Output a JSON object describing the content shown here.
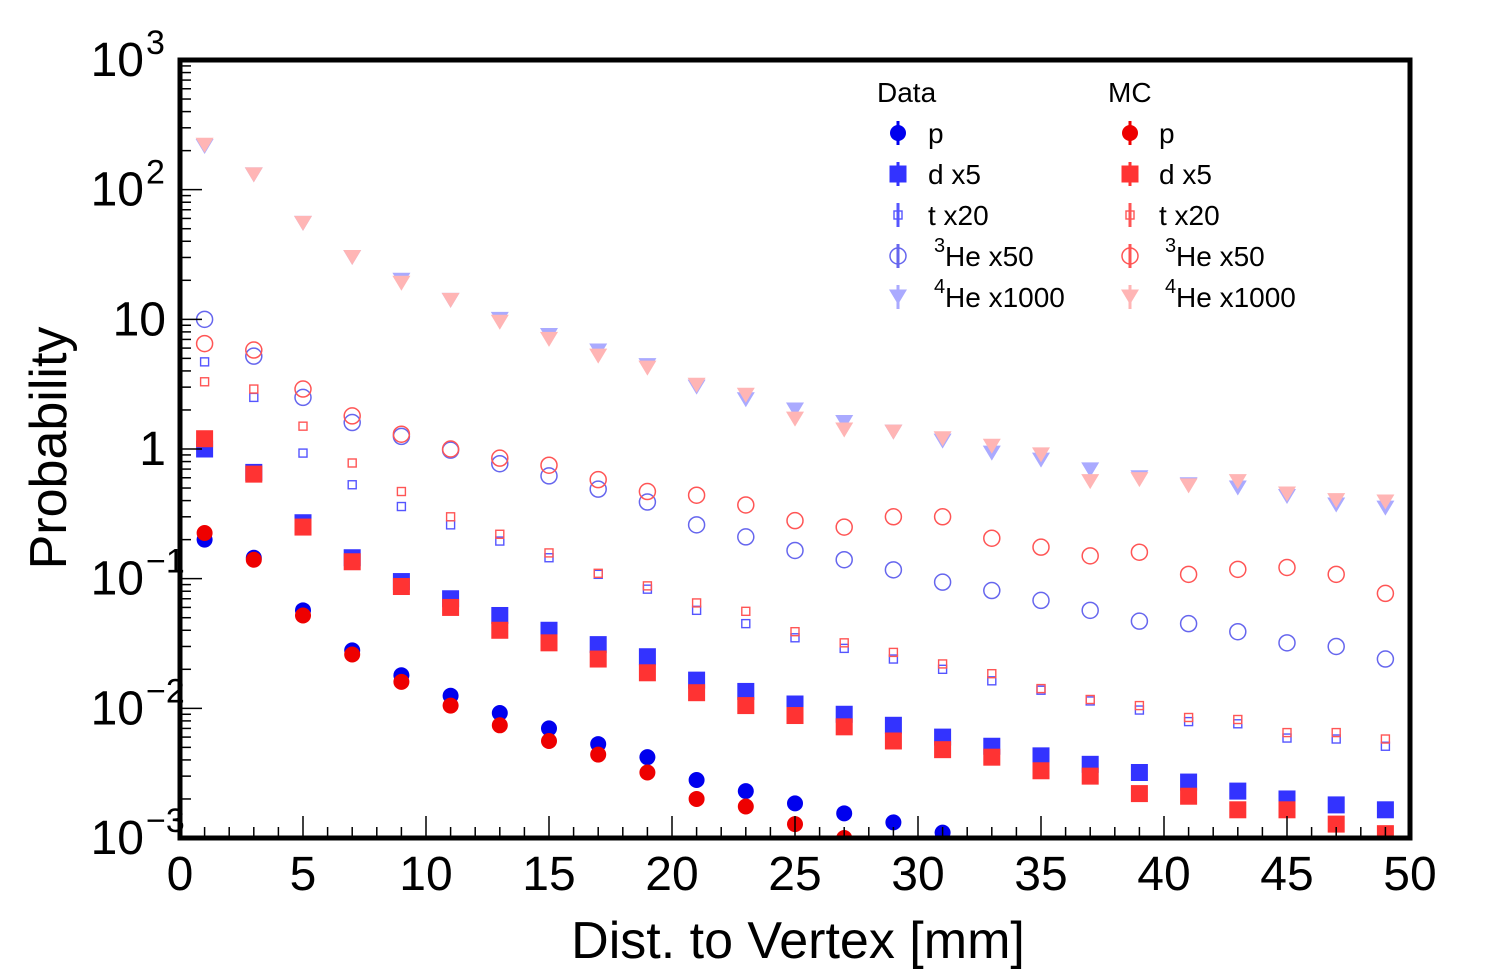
{
  "chart_data": {
    "type": "scatter",
    "title": "",
    "xlabel": "Dist. to Vertex [mm]",
    "ylabel": "Probability",
    "xlim": [
      0,
      50
    ],
    "ylim": [
      0.001,
      1000
    ],
    "yscale": "log",
    "grid": false,
    "legend_position": "top-right",
    "x_ticks": [
      0,
      5,
      10,
      15,
      20,
      25,
      30,
      35,
      40,
      45,
      50
    ],
    "x_tick_labels": [
      "0",
      "5",
      "10",
      "15",
      "20",
      "25",
      "30",
      "35",
      "40",
      "45",
      "50"
    ],
    "y_ticks": [
      {
        "value": 0.001,
        "base": "10",
        "exp": "−3"
      },
      {
        "value": 0.01,
        "base": "10",
        "exp": "−2"
      },
      {
        "value": 0.1,
        "base": "10",
        "exp": "−1"
      },
      {
        "value": 1,
        "base": "1",
        "exp": ""
      },
      {
        "value": 10,
        "base": "10",
        "exp": ""
      },
      {
        "value": 100,
        "base": "10",
        "exp": "2"
      },
      {
        "value": 1000,
        "base": "10",
        "exp": "3"
      }
    ],
    "legend": {
      "data_header": "Data",
      "mc_header": "MC",
      "entries": [
        {
          "pre": "",
          "label": "p"
        },
        {
          "pre": "",
          "label": "d x5"
        },
        {
          "pre": "",
          "label": "t x20"
        },
        {
          "pre": "3",
          "label": "He x50"
        },
        {
          "pre": "4",
          "label": "He x1000"
        }
      ]
    },
    "x": [
      1,
      3,
      5,
      7,
      9,
      11,
      13,
      15,
      17,
      19,
      21,
      23,
      25,
      27,
      29,
      31,
      33,
      35,
      37,
      39,
      41,
      43,
      45,
      47,
      49
    ],
    "series": [
      {
        "group": "Data",
        "particle": "p",
        "marker": "circle-filled",
        "color": "#0000ee",
        "opacity": 1.0,
        "values": [
          0.2,
          0.145,
          0.057,
          0.028,
          0.018,
          0.0125,
          0.0092,
          0.007,
          0.0053,
          0.0042,
          0.0028,
          0.0023,
          0.00185,
          0.00155,
          0.00132,
          0.0011,
          null,
          null,
          null,
          null,
          null,
          null,
          null,
          null,
          null
        ]
      },
      {
        "group": "MC",
        "particle": "p",
        "marker": "circle-filled",
        "color": "#ee0000",
        "opacity": 1.0,
        "values": [
          0.225,
          0.14,
          0.052,
          0.026,
          0.016,
          0.0105,
          0.0074,
          0.0056,
          0.0044,
          0.0032,
          0.002,
          0.00175,
          0.00128,
          0.001,
          null,
          null,
          null,
          null,
          null,
          null,
          null,
          null,
          null,
          null,
          null
        ]
      },
      {
        "group": "Data",
        "particle": "d",
        "marker": "square-filled",
        "color": "#3333ff",
        "opacity": 1.0,
        "values": [
          1.0,
          0.66,
          0.27,
          0.145,
          0.095,
          0.07,
          0.052,
          0.04,
          0.031,
          0.025,
          0.0165,
          0.0135,
          0.0108,
          0.009,
          0.0074,
          0.006,
          0.0051,
          0.0043,
          0.0037,
          0.0032,
          0.0027,
          0.0023,
          0.002,
          0.0018,
          0.00165
        ]
      },
      {
        "group": "MC",
        "particle": "d",
        "marker": "square-filled",
        "color": "#ff3333",
        "opacity": 1.0,
        "values": [
          1.2,
          0.64,
          0.25,
          0.135,
          0.087,
          0.06,
          0.04,
          0.032,
          0.024,
          0.0188,
          0.0132,
          0.0105,
          0.0088,
          0.0072,
          0.0056,
          0.0048,
          0.0042,
          0.0033,
          0.003,
          0.0022,
          0.0021,
          0.00165,
          0.00165,
          0.00128,
          0.00108
        ]
      },
      {
        "group": "Data",
        "particle": "t",
        "marker": "square-open",
        "color": "#5555ff",
        "opacity": 1.0,
        "values": [
          4.7,
          2.5,
          0.93,
          0.53,
          0.36,
          0.26,
          0.195,
          0.145,
          0.108,
          0.083,
          0.057,
          0.045,
          0.035,
          0.029,
          0.024,
          0.02,
          0.0163,
          0.0138,
          0.0114,
          0.0097,
          0.0079,
          0.0076,
          0.0059,
          0.0058,
          0.0051
        ]
      },
      {
        "group": "MC",
        "particle": "t",
        "marker": "square-open",
        "color": "#ff5555",
        "opacity": 1.0,
        "values": [
          3.3,
          2.9,
          1.5,
          0.78,
          0.47,
          0.3,
          0.22,
          0.158,
          0.11,
          0.088,
          0.065,
          0.056,
          0.039,
          0.032,
          0.027,
          0.022,
          0.0185,
          0.0142,
          0.0117,
          0.0105,
          0.0085,
          0.0082,
          0.0065,
          0.0065,
          0.0058
        ]
      },
      {
        "group": "Data",
        "particle": "He3",
        "marker": "circle-open",
        "color": "#6666ee",
        "opacity": 1.0,
        "values": [
          10,
          5.2,
          2.5,
          1.6,
          1.25,
          0.98,
          0.77,
          0.62,
          0.49,
          0.39,
          0.26,
          0.21,
          0.165,
          0.14,
          0.117,
          0.094,
          0.081,
          0.068,
          0.057,
          0.047,
          0.045,
          0.039,
          0.032,
          0.03,
          0.024
        ]
      },
      {
        "group": "MC",
        "particle": "He3",
        "marker": "circle-open",
        "color": "#ff5555",
        "opacity": 1.0,
        "values": [
          6.5,
          5.8,
          2.9,
          1.8,
          1.3,
          1.0,
          0.85,
          0.75,
          0.58,
          0.47,
          0.44,
          0.37,
          0.28,
          0.25,
          0.3,
          0.3,
          0.205,
          0.175,
          0.15,
          0.16,
          0.108,
          0.118,
          0.122,
          0.108,
          0.077
        ]
      },
      {
        "group": "Data",
        "particle": "He4",
        "marker": "triangle-down",
        "color": "#aaaaff",
        "opacity": 1.0,
        "values": [
          215,
          130,
          55,
          30,
          20,
          14,
          10,
          7.5,
          5.7,
          4.4,
          3.0,
          2.4,
          2.0,
          1.6,
          1.35,
          1.15,
          0.93,
          0.82,
          0.69,
          0.6,
          0.53,
          0.5,
          0.43,
          0.37,
          0.35
        ]
      },
      {
        "group": "MC",
        "particle": "He4",
        "marker": "triangle-down",
        "color": "#ffb5b5",
        "opacity": 1.0,
        "values": [
          220,
          130,
          55,
          30,
          19,
          14,
          9.5,
          7.0,
          5.2,
          4.2,
          3.1,
          2.6,
          1.7,
          1.4,
          1.35,
          1.2,
          1.05,
          0.9,
          0.56,
          0.58,
          0.52,
          0.56,
          0.45,
          0.4,
          0.39
        ]
      }
    ]
  }
}
